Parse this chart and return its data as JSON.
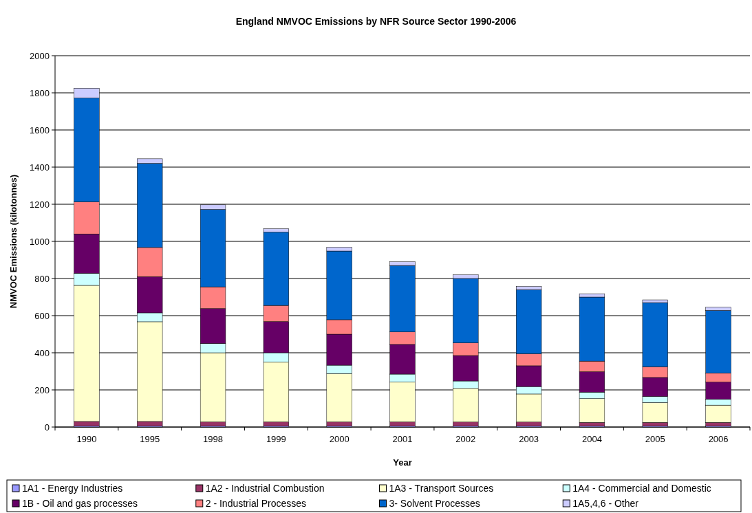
{
  "chart_data": {
    "type": "bar",
    "title": "England NMVOC Emissions by NFR Source Sector 1990-2006",
    "xlabel": "Year",
    "ylabel": "NMVOC Emissions (kilotonnes)",
    "categories": [
      "1990",
      "1995",
      "1998",
      "1999",
      "2000",
      "2001",
      "2002",
      "2003",
      "2004",
      "2005",
      "2006"
    ],
    "stacked": true,
    "grid": "y",
    "legend": "bottom",
    "ylim": [
      0,
      2000
    ],
    "yticks": [
      0,
      200,
      400,
      600,
      800,
      1000,
      1200,
      1400,
      1600,
      1800,
      2000
    ],
    "series": [
      {
        "name": "1A1 - Energy Industries",
        "color": "#9999ff",
        "values": [
          5,
          5,
          5,
          5,
          5,
          5,
          5,
          5,
          5,
          5,
          5
        ]
      },
      {
        "name": "1A2 - Industrial Combustion",
        "color": "#993366",
        "values": [
          25,
          25,
          23,
          23,
          23,
          23,
          22,
          22,
          20,
          20,
          20
        ]
      },
      {
        "name": "1A3 - Transport Sources",
        "color": "#ffffcc",
        "values": [
          733,
          537,
          372,
          322,
          260,
          214,
          181,
          151,
          128,
          107,
          93
        ]
      },
      {
        "name": "1A4 - Commercial and Domestic",
        "color": "#ccffff",
        "values": [
          65,
          48,
          50,
          50,
          45,
          43,
          40,
          40,
          35,
          33,
          32
        ]
      },
      {
        "name": "1B - Oil and gas processes",
        "color": "#660066",
        "values": [
          212,
          195,
          188,
          168,
          167,
          160,
          137,
          112,
          110,
          102,
          92
        ]
      },
      {
        "name": "2 - Industrial Processes",
        "color": "#ff8080",
        "values": [
          173,
          157,
          117,
          87,
          78,
          67,
          68,
          65,
          57,
          58,
          48
        ]
      },
      {
        "name": "3- Solvent Processes",
        "color": "#0066cc",
        "values": [
          559,
          453,
          417,
          395,
          370,
          358,
          347,
          345,
          345,
          345,
          338
        ]
      },
      {
        "name": "1A5,4,6 - Other",
        "color": "#ccccff",
        "values": [
          53,
          25,
          25,
          18,
          20,
          20,
          20,
          17,
          18,
          15,
          17
        ]
      }
    ]
  }
}
